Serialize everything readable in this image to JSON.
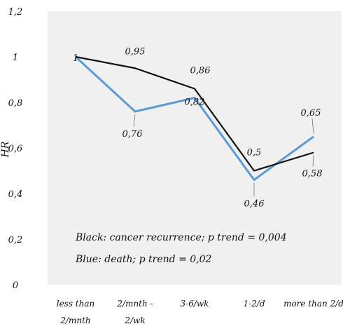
{
  "chart_data": {
    "type": "line",
    "ylabel": "HR",
    "ylim": [
      0,
      1.2
    ],
    "y_ticks": [
      "0",
      "0,2",
      "0,4",
      "0,6",
      "0,8",
      "1",
      "1,2"
    ],
    "categories": [
      [
        "less than",
        "2/mnth"
      ],
      [
        "2/mnth -",
        "2/wk"
      ],
      [
        "3-6/wk"
      ],
      [
        "1-2/d"
      ],
      [
        "more than 2/d"
      ]
    ],
    "series": [
      {
        "color": "#111111",
        "values": [
          1,
          0.95,
          0.86,
          0.5,
          0.58
        ],
        "labels": [
          "1",
          "0,95",
          "0,86",
          "0,5",
          "0,58"
        ]
      },
      {
        "color": "#5b9bd5",
        "values": [
          1,
          0.76,
          0.82,
          0.46,
          0.65
        ],
        "labels": [
          "",
          "0,76",
          "0,82",
          "0,46",
          "0,65"
        ]
      }
    ],
    "annotations": [
      "Black: cancer recurrence; p trend = 0,004",
      "Blue: death; p trend = 0,02"
    ],
    "grid": false,
    "legend": "none",
    "plot_background": "#f0f0f0"
  }
}
